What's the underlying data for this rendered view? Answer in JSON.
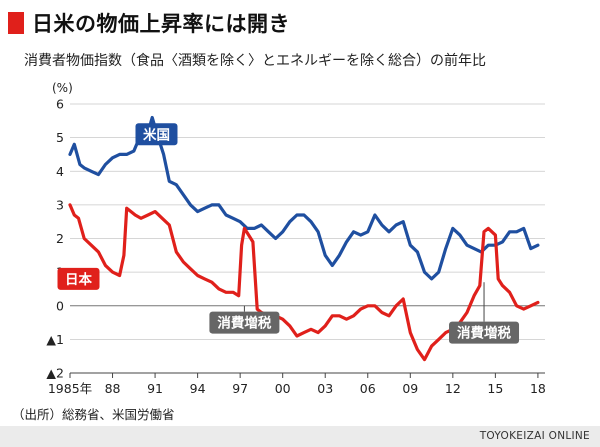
{
  "title": "日米の物価上昇率には開き",
  "subtitle": "消費者物価指数（食品〈酒類を除く〉とエネルギーを除く総合）の前年比",
  "source": "（出所）総務省、米国労働省",
  "brand": "TOYOKEIZAI ONLINE",
  "colors": {
    "accent": "#e0201b",
    "us": "#1f4fa0",
    "jp": "#e0201b",
    "note": "#666666"
  },
  "chart_data": {
    "type": "line",
    "y_unit_label": "(%)",
    "ylim": [
      -2,
      6
    ],
    "y_ticks": [
      -2,
      -1,
      0,
      1,
      2,
      3,
      4,
      5,
      6
    ],
    "y_tick_labels": [
      "▲2",
      "▲1",
      "0",
      "1",
      "2",
      "3",
      "4",
      "5",
      "6"
    ],
    "xlim": [
      1985,
      2018.5
    ],
    "x_ticks": [
      1985,
      1988,
      1991,
      1994,
      1997,
      2000,
      2003,
      2006,
      2009,
      2012,
      2015,
      2018
    ],
    "x_tick_labels": [
      "1985年",
      "88",
      "91",
      "94",
      "97",
      "00",
      "03",
      "06",
      "09",
      "12",
      "15",
      "18"
    ],
    "grid": "horizontal",
    "series": [
      {
        "name": "米国",
        "color": "#1f4fa0",
        "x": [
          1985,
          1985.3,
          1985.7,
          1986,
          1986.5,
          1987,
          1987.5,
          1988,
          1988.5,
          1989,
          1989.5,
          1989.8,
          1990,
          1990.3,
          1990.6,
          1990.8,
          1991,
          1991.3,
          1991.6,
          1992,
          1992.5,
          1993,
          1993.5,
          1994,
          1994.5,
          1995,
          1995.5,
          1996,
          1996.5,
          1997,
          1997.5,
          1998,
          1998.5,
          1999,
          1999.5,
          2000,
          2000.5,
          2001,
          2001.5,
          2002,
          2002.5,
          2003,
          2003.5,
          2004,
          2004.5,
          2005,
          2005.5,
          2006,
          2006.5,
          2007,
          2007.5,
          2008,
          2008.5,
          2009,
          2009.5,
          2010,
          2010.5,
          2011,
          2011.5,
          2012,
          2012.5,
          2013,
          2013.5,
          2014,
          2014.5,
          2015,
          2015.5,
          2016,
          2016.5,
          2017,
          2017.5,
          2018
        ],
        "values": [
          4.5,
          4.8,
          4.2,
          4.1,
          4.0,
          3.9,
          4.2,
          4.4,
          4.5,
          4.5,
          4.6,
          4.9,
          5.0,
          5.2,
          5.3,
          5.6,
          5.3,
          4.9,
          4.5,
          3.7,
          3.6,
          3.3,
          3.0,
          2.8,
          2.9,
          3.0,
          3.0,
          2.7,
          2.6,
          2.5,
          2.3,
          2.3,
          2.4,
          2.2,
          2.0,
          2.2,
          2.5,
          2.7,
          2.7,
          2.5,
          2.2,
          1.5,
          1.2,
          1.5,
          1.9,
          2.2,
          2.1,
          2.2,
          2.7,
          2.4,
          2.2,
          2.4,
          2.5,
          1.8,
          1.6,
          1.0,
          0.8,
          1.0,
          1.7,
          2.3,
          2.1,
          1.8,
          1.7,
          1.6,
          1.8,
          1.8,
          1.9,
          2.2,
          2.2,
          2.3,
          1.7,
          1.8
        ]
      },
      {
        "name": "日本",
        "color": "#e0201b",
        "x": [
          1985,
          1985.3,
          1985.6,
          1986,
          1986.5,
          1987,
          1987.5,
          1988,
          1988.5,
          1988.8,
          1989,
          1989.3,
          1989.6,
          1990,
          1990.5,
          1991,
          1991.5,
          1992,
          1992.5,
          1993,
          1993.5,
          1994,
          1994.5,
          1995,
          1995.5,
          1996,
          1996.5,
          1996.9,
          1997.1,
          1997.3,
          1997.6,
          1997.9,
          1998.2,
          1998.5,
          1999,
          1999.5,
          2000,
          2000.5,
          2001,
          2001.5,
          2002,
          2002.5,
          2003,
          2003.5,
          2004,
          2004.5,
          2005,
          2005.5,
          2006,
          2006.5,
          2007,
          2007.5,
          2008,
          2008.5,
          2009,
          2009.5,
          2010,
          2010.5,
          2011,
          2011.5,
          2012,
          2012.5,
          2013,
          2013.5,
          2013.9,
          2014.2,
          2014.5,
          2015,
          2015.2,
          2015.5,
          2016,
          2016.5,
          2017,
          2017.5,
          2018
        ],
        "values": [
          3.0,
          2.7,
          2.6,
          2.0,
          1.8,
          1.6,
          1.2,
          1.0,
          0.9,
          1.5,
          2.9,
          2.8,
          2.7,
          2.6,
          2.7,
          2.8,
          2.6,
          2.4,
          1.6,
          1.3,
          1.1,
          0.9,
          0.8,
          0.7,
          0.5,
          0.4,
          0.4,
          0.3,
          1.8,
          2.3,
          2.1,
          1.9,
          -0.1,
          -0.2,
          -0.3,
          -0.3,
          -0.4,
          -0.6,
          -0.9,
          -0.8,
          -0.7,
          -0.8,
          -0.6,
          -0.3,
          -0.3,
          -0.4,
          -0.3,
          -0.1,
          0.0,
          0.0,
          -0.2,
          -0.3,
          0.0,
          0.2,
          -0.8,
          -1.3,
          -1.6,
          -1.2,
          -1.0,
          -0.8,
          -0.7,
          -0.5,
          -0.2,
          0.3,
          0.6,
          2.2,
          2.3,
          2.1,
          0.8,
          0.6,
          0.4,
          0.0,
          -0.1,
          0.0,
          0.1
        ]
      }
    ],
    "annotations": [
      {
        "text": "米国",
        "series": "米国",
        "x": 1991.1,
        "y": 5.1
      },
      {
        "text": "日本",
        "series": "日本",
        "x": 1985.6,
        "y": 0.8
      },
      {
        "text": "消費増税",
        "x": 1997.3,
        "y": -0.5
      },
      {
        "text": "消費増税",
        "x": 2014.2,
        "y": -0.8
      }
    ]
  }
}
